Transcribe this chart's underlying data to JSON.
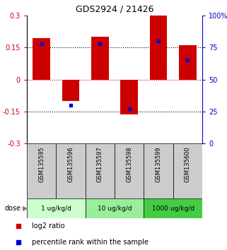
{
  "title": "GDS2924 / 21426",
  "samples": [
    "GSM135595",
    "GSM135596",
    "GSM135597",
    "GSM135598",
    "GSM135599",
    "GSM135600"
  ],
  "log2_ratios": [
    0.195,
    -0.1,
    0.2,
    -0.165,
    0.305,
    0.16
  ],
  "percentile_ranks": [
    78,
    30,
    78,
    27,
    80,
    65
  ],
  "dose_groups": [
    {
      "label": "1 ug/kg/d",
      "samples": [
        0,
        1
      ],
      "color": "#ccffcc"
    },
    {
      "label": "10 ug/kg/d",
      "samples": [
        2,
        3
      ],
      "color": "#99ee99"
    },
    {
      "label": "1000 ug/kg/d",
      "samples": [
        4,
        5
      ],
      "color": "#44cc44"
    }
  ],
  "bar_color": "#cc0000",
  "dot_color": "#0000cc",
  "ylim": [
    -0.3,
    0.3
  ],
  "y2lim": [
    0,
    100
  ],
  "yticks": [
    -0.3,
    -0.15,
    0,
    0.15,
    0.3
  ],
  "y2ticks": [
    0,
    25,
    50,
    75,
    100
  ],
  "ytick_labels": [
    "-0.3",
    "-0.15",
    "0",
    "0.15",
    "0.3"
  ],
  "y2tick_labels": [
    "0",
    "25",
    "50",
    "75",
    "100%"
  ],
  "hlines": [
    -0.15,
    0,
    0.15
  ],
  "hline_colors": [
    "black",
    "#dd0000",
    "black"
  ],
  "hline_styles": [
    "dotted",
    "dotted",
    "dotted"
  ],
  "sample_header_color": "#cccccc",
  "title_fontsize": 9,
  "tick_fontsize": 7,
  "label_fontsize": 7
}
